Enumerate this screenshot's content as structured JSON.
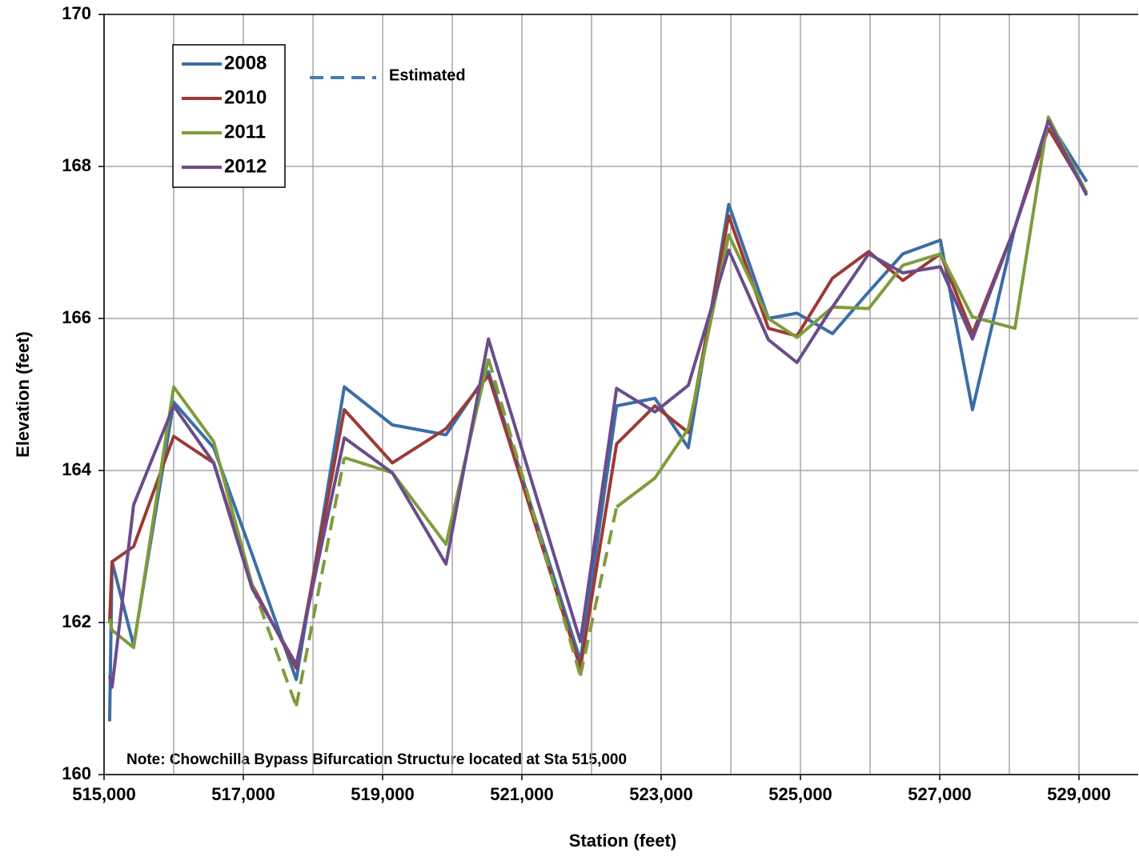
{
  "chart_data": {
    "type": "line",
    "xlabel": "Station (feet)",
    "ylabel": "Elevation (feet)",
    "note": "Note:  Chowchilla Bypass Bifurcation Structure located at Sta 515,000",
    "estimated_label": "Estimated",
    "estimated_color": "#4a7ab5",
    "x": [
      515080,
      515115,
      515425,
      516000,
      516575,
      517125,
      517760,
      518450,
      519140,
      519910,
      520520,
      521840,
      522360,
      522910,
      523390,
      523970,
      524540,
      524950,
      525460,
      525980,
      526470,
      527010,
      527470,
      528080,
      528560,
      529110
    ],
    "series": [
      {
        "name": "2008",
        "color": "#3b6ea6",
        "values": [
          160.7,
          162.8,
          161.7,
          164.9,
          164.3,
          162.9,
          161.25,
          165.1,
          164.6,
          164.47,
          165.3,
          161.5,
          164.85,
          164.95,
          164.3,
          167.5,
          166.0,
          166.07,
          165.8,
          166.35,
          166.85,
          167.03,
          164.8,
          167.2,
          168.6,
          167.8
        ]
      },
      {
        "name": "2010",
        "color": "#9c3a35",
        "values": [
          162.0,
          162.8,
          163.0,
          164.45,
          164.1,
          162.5,
          161.4,
          164.8,
          164.1,
          164.55,
          165.25,
          161.4,
          164.35,
          164.85,
          164.5,
          167.35,
          165.87,
          165.77,
          166.53,
          166.88,
          166.5,
          166.85,
          165.8,
          167.2,
          168.5,
          167.65
        ]
      },
      {
        "name": "2011",
        "color": "#7e9c3c",
        "values": [
          162.05,
          161.9,
          161.67,
          165.1,
          164.38,
          162.5,
          160.9,
          164.17,
          163.97,
          163.03,
          165.47,
          161.3,
          163.52,
          163.9,
          164.55,
          167.1,
          166.0,
          165.75,
          166.15,
          166.13,
          166.7,
          166.85,
          166.02,
          165.87,
          168.65,
          167.65
        ],
        "estimated_segments": [
          [
            5,
            6
          ],
          [
            6,
            7
          ],
          [
            10,
            11
          ],
          [
            11,
            12
          ]
        ]
      },
      {
        "name": "2012",
        "color": "#6a4c8b",
        "values": [
          161.3,
          161.15,
          163.55,
          164.85,
          164.1,
          162.45,
          161.45,
          164.43,
          163.97,
          162.77,
          165.73,
          161.75,
          165.08,
          164.77,
          165.12,
          166.9,
          165.72,
          165.42,
          166.15,
          166.85,
          166.6,
          166.68,
          165.73,
          167.2,
          168.6,
          167.62
        ]
      }
    ],
    "xlim": [
      515000,
      529850
    ],
    "ylim": [
      160,
      170
    ],
    "xticks": [
      {
        "value": 515000,
        "label": "515,000"
      },
      {
        "value": 517000,
        "label": "517,000"
      },
      {
        "value": 519000,
        "label": "519,000"
      },
      {
        "value": 521000,
        "label": "521,000"
      },
      {
        "value": 523000,
        "label": "523,000"
      },
      {
        "value": 525000,
        "label": "525,000"
      },
      {
        "value": 527000,
        "label": "527,000"
      },
      {
        "value": 529000,
        "label": "529,000"
      }
    ],
    "xgrid_minor": [
      516000,
      518000,
      520000,
      522000,
      524000,
      526000,
      528000
    ],
    "yticks": [
      160,
      162,
      164,
      166,
      168,
      170
    ],
    "grid": true
  }
}
